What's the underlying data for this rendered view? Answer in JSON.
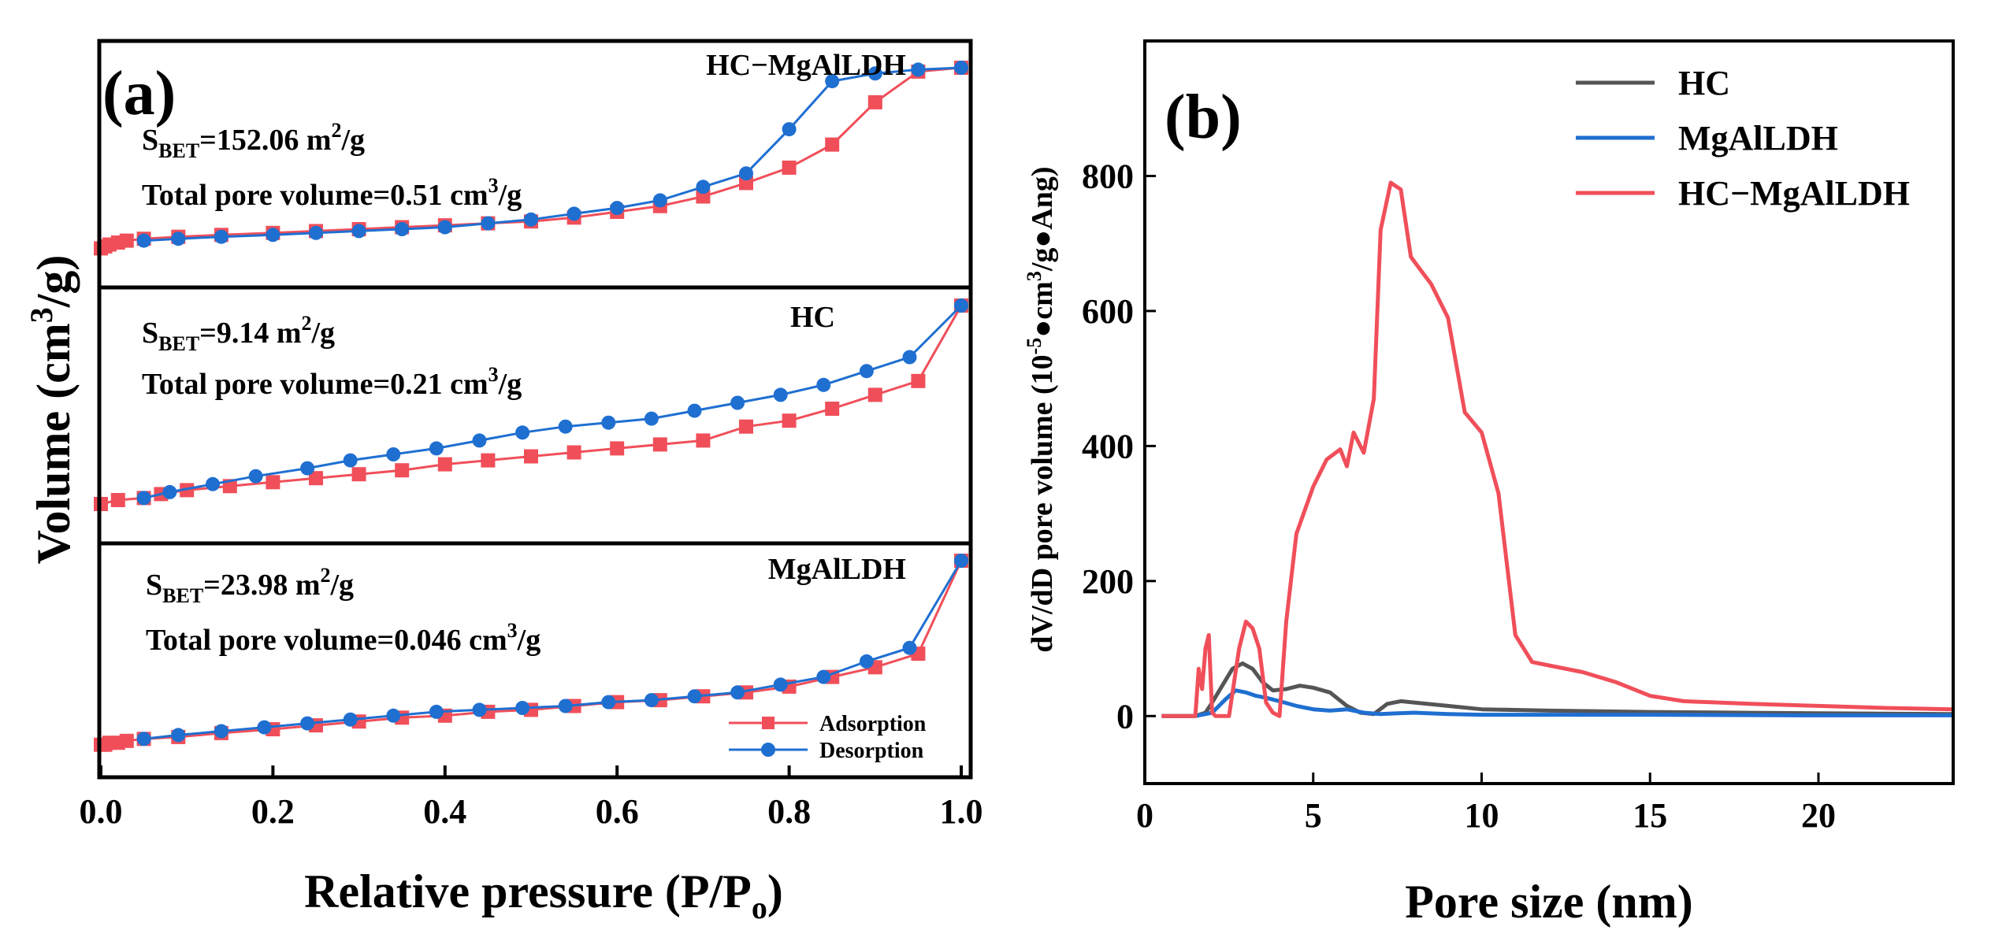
{
  "chart_data": [
    {
      "type": "line",
      "panel_label": "(a)",
      "xlabel": "Relative pressure (P/P",
      "xlabel_sub": "o",
      "xlabel_tail": ")",
      "ylabel": "Volume (cm",
      "ylabel_sup": "3",
      "ylabel_tail": "/g)",
      "xlim": [
        0.0,
        1.0
      ],
      "xticks": [
        "0.0",
        "0.2",
        "0.4",
        "0.6",
        "0.8",
        "1.0"
      ],
      "legend": [
        {
          "name": "Adsorption",
          "color": "#f04f5a",
          "marker": "square"
        },
        {
          "name": "Desorption",
          "color": "#1f6fd1",
          "marker": "circle"
        }
      ],
      "colors": {
        "adsorption": "#f04f5a",
        "desorption": "#1f6fd1"
      },
      "subplots": [
        {
          "name": "HC−MgAlLDH",
          "sbet_prefix": "S",
          "sbet_sub": "BET",
          "sbet_value": "=152.06 m",
          "sbet_sup": "2",
          "sbet_unit": "/g",
          "pore_text": "Total pore volume=0.51 cm",
          "pore_sup": "3",
          "pore_unit": "/g",
          "ylim": [
            0,
            100
          ],
          "adsorption": {
            "x": [
              0.0,
              0.005,
              0.01,
              0.02,
              0.03,
              0.05,
              0.09,
              0.14,
              0.2,
              0.25,
              0.3,
              0.35,
              0.4,
              0.45,
              0.5,
              0.55,
              0.6,
              0.65,
              0.7,
              0.75,
              0.8,
              0.85,
              0.9,
              0.95,
              1.0
            ],
            "y": [
              6,
              7,
              8,
              9,
              10,
              11,
              12,
              13,
              14,
              15,
              16,
              17,
              18,
              19,
              20,
              22,
              25,
              28,
              33,
              40,
              48,
              60,
              82,
              98,
              100
            ]
          },
          "desorption": {
            "x": [
              0.05,
              0.09,
              0.14,
              0.2,
              0.25,
              0.3,
              0.35,
              0.4,
              0.45,
              0.5,
              0.55,
              0.6,
              0.65,
              0.7,
              0.75,
              0.8,
              0.85,
              0.9,
              0.95,
              1.0
            ],
            "y": [
              10,
              11,
              12,
              13,
              14,
              15,
              16,
              17,
              19,
              21,
              24,
              27,
              31,
              38,
              45,
              68,
              93,
              97,
              99,
              100
            ]
          }
        },
        {
          "name": "HC",
          "sbet_prefix": "S",
          "sbet_sub": "BET",
          "sbet_value": "=9.14 m",
          "sbet_sup": "2",
          "sbet_unit": "/g",
          "pore_text": "Total pore volume=0.21 cm",
          "pore_sup": "3",
          "pore_unit": "/g",
          "ylim": [
            0,
            100
          ],
          "adsorption": {
            "x": [
              0.0,
              0.02,
              0.05,
              0.07,
              0.1,
              0.15,
              0.2,
              0.25,
              0.3,
              0.35,
              0.4,
              0.45,
              0.5,
              0.55,
              0.6,
              0.65,
              0.7,
              0.75,
              0.8,
              0.85,
              0.9,
              0.95,
              1.0
            ],
            "y": [
              0,
              2,
              3,
              5,
              7,
              9,
              11,
              13,
              15,
              17,
              20,
              22,
              24,
              26,
              28,
              30,
              32,
              39,
              42,
              48,
              55,
              62,
              100
            ]
          },
          "desorption": {
            "x": [
              0.05,
              0.08,
              0.13,
              0.18,
              0.24,
              0.29,
              0.34,
              0.39,
              0.44,
              0.49,
              0.54,
              0.59,
              0.64,
              0.69,
              0.74,
              0.79,
              0.84,
              0.89,
              0.94,
              1.0
            ],
            "y": [
              3,
              6,
              10,
              14,
              18,
              22,
              25,
              28,
              32,
              36,
              39,
              41,
              43,
              47,
              51,
              55,
              60,
              67,
              74,
              100
            ]
          }
        },
        {
          "name": "MgAlLDH",
          "sbet_prefix": "S",
          "sbet_sub": "BET",
          "sbet_value": "=23.98 m",
          "sbet_sup": "2",
          "sbet_unit": "/g",
          "pore_text": "Total pore volume=0.046 cm",
          "pore_sup": "3",
          "pore_unit": "/g",
          "ylim": [
            0,
            100
          ],
          "adsorption": {
            "x": [
              0.0,
              0.005,
              0.01,
              0.02,
              0.03,
              0.05,
              0.09,
              0.14,
              0.2,
              0.25,
              0.3,
              0.35,
              0.4,
              0.45,
              0.5,
              0.55,
              0.6,
              0.65,
              0.7,
              0.75,
              0.8,
              0.85,
              0.9,
              0.95,
              1.0
            ],
            "y": [
              5,
              5,
              6,
              6,
              7,
              8,
              9,
              11,
              13,
              15,
              17,
              19,
              20,
              22,
              23,
              25,
              27,
              28,
              30,
              32,
              35,
              40,
              45,
              52,
              100
            ]
          },
          "desorption": {
            "x": [
              0.05,
              0.09,
              0.14,
              0.19,
              0.24,
              0.29,
              0.34,
              0.39,
              0.44,
              0.49,
              0.54,
              0.59,
              0.64,
              0.69,
              0.74,
              0.79,
              0.84,
              0.89,
              0.94,
              1.0
            ],
            "y": [
              8,
              10,
              12,
              14,
              16,
              18,
              20,
              22,
              23,
              24,
              25,
              27,
              28,
              30,
              32,
              36,
              40,
              48,
              55,
              100
            ]
          }
        }
      ]
    },
    {
      "type": "line",
      "panel_label": "(b)",
      "xlabel": "Pore size (nm)",
      "ylabel": "dV/dD pore volume (10",
      "ylabel_sup": "-5",
      "ylabel_tail": "●cm",
      "ylabel_sup2": "3",
      "ylabel_tail2": "/g●Ang)",
      "xlim": [
        0,
        24
      ],
      "ylim": [
        -100,
        1000
      ],
      "xticks": [
        0,
        5,
        10,
        15,
        20
      ],
      "yticks": [
        0,
        200,
        400,
        600,
        800
      ],
      "legend_position": "top-right",
      "series": [
        {
          "name": "HC",
          "color": "#555555",
          "x": [
            0.5,
            1.5,
            1.8,
            2.0,
            2.3,
            2.6,
            2.9,
            3.2,
            3.5,
            3.8,
            4.2,
            4.6,
            5.0,
            5.5,
            6.0,
            6.4,
            6.8,
            7.2,
            7.6,
            8.0,
            9.0,
            10.0,
            12.0,
            15.0,
            20.0,
            24.0
          ],
          "y": [
            0,
            0,
            5,
            20,
            45,
            70,
            78,
            70,
            50,
            38,
            40,
            45,
            42,
            35,
            15,
            5,
            3,
            18,
            22,
            20,
            15,
            10,
            8,
            6,
            4,
            3
          ]
        },
        {
          "name": "MgAlLDH",
          "color": "#1f6fd1",
          "x": [
            0.5,
            1.5,
            2.0,
            2.4,
            2.7,
            3.0,
            3.3,
            3.6,
            4.0,
            4.5,
            5.0,
            5.5,
            6.0,
            6.5,
            7.0,
            7.5,
            8.0,
            9.0,
            10.0,
            12.0,
            15.0,
            20.0,
            24.0
          ],
          "y": [
            0,
            0,
            5,
            25,
            38,
            35,
            30,
            27,
            22,
            15,
            10,
            8,
            10,
            5,
            3,
            4,
            5,
            3,
            2,
            2,
            2,
            1,
            1
          ],
          "dummy": null
        },
        {
          "name": "HC−MgAlLDH",
          "color": "#f04f5a",
          "x": [
            0.5,
            1.5,
            1.6,
            1.7,
            1.8,
            1.9,
            2.0,
            2.1,
            2.5,
            2.8,
            3.0,
            3.2,
            3.4,
            3.6,
            3.8,
            4.0,
            4.2,
            4.5,
            5.0,
            5.4,
            5.8,
            6.0,
            6.2,
            6.5,
            6.8,
            7.0,
            7.3,
            7.6,
            7.9,
            8.2,
            8.5,
            9.0,
            9.5,
            10.0,
            10.5,
            11.0,
            11.5,
            12.0,
            13.0,
            14.0,
            15.0,
            16.0,
            18.0,
            20.0,
            22.0,
            24.0
          ],
          "y": [
            0,
            0,
            70,
            40,
            100,
            120,
            5,
            0,
            0,
            100,
            140,
            130,
            100,
            20,
            5,
            0,
            140,
            270,
            340,
            380,
            395,
            370,
            420,
            390,
            470,
            720,
            790,
            780,
            680,
            660,
            640,
            590,
            450,
            420,
            330,
            120,
            80,
            75,
            65,
            50,
            30,
            22,
            18,
            15,
            12,
            10
          ]
        }
      ]
    }
  ]
}
